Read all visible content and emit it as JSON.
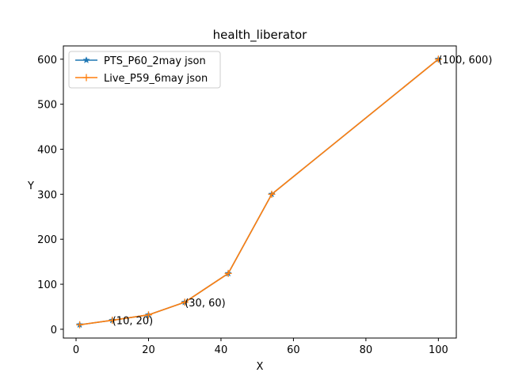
{
  "chart_data": {
    "type": "line",
    "title": "health_liberator",
    "xlabel": "X",
    "ylabel": "Y",
    "xlim": [
      -3.5,
      104.95
    ],
    "ylim": [
      -19.5,
      629.5
    ],
    "xticks": [
      0,
      20,
      40,
      60,
      80,
      100
    ],
    "yticks": [
      0,
      100,
      200,
      300,
      400,
      500,
      600
    ],
    "grid": false,
    "legend_position": "top-left",
    "series": [
      {
        "name": "PTS_P60_2may json",
        "color": "#1f77b4",
        "marker": "star",
        "x": [
          1,
          10,
          20,
          30,
          42,
          54,
          100
        ],
        "y": [
          10,
          20,
          32,
          60,
          124,
          300,
          600
        ]
      },
      {
        "name": "Live_P59_6may json",
        "color": "#ff7f0e",
        "marker": "plus",
        "x": [
          1,
          10,
          20,
          30,
          42,
          54,
          100
        ],
        "y": [
          10,
          20,
          32,
          60,
          124,
          300,
          600
        ]
      }
    ],
    "annotations": [
      {
        "text": "(10, 20)",
        "x": 10,
        "y": 20
      },
      {
        "text": "(30, 60)",
        "x": 30,
        "y": 60
      },
      {
        "text": "(100, 600)",
        "x": 100,
        "y": 600
      }
    ]
  }
}
